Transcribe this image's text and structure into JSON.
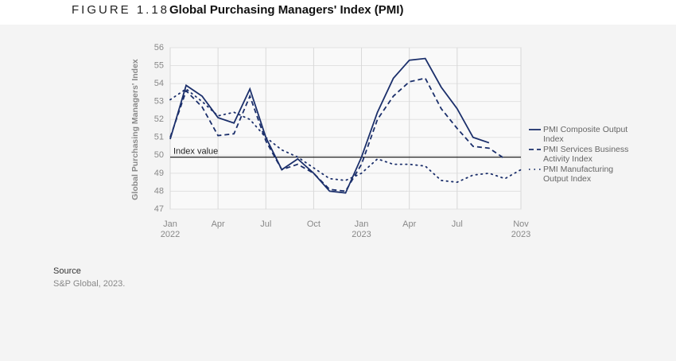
{
  "figure_label": "FIGURE 1.18",
  "source": {
    "heading": "Source",
    "text": "S&P Global, 2023."
  },
  "chart_data": {
    "type": "line",
    "title": "Global Purchasing Managers' Index (PMI)",
    "y_label": "Global Purchasing Managers' Index",
    "x": [
      "2022-01",
      "2022-02",
      "2022-03",
      "2022-04",
      "2022-05",
      "2022-06",
      "2022-07",
      "2022-08",
      "2022-09",
      "2022-10",
      "2022-11",
      "2022-12",
      "2023-01",
      "2023-02",
      "2023-03",
      "2023-04",
      "2023-05",
      "2023-06",
      "2023-07",
      "2023-08",
      "2023-09",
      "2023-10",
      "2023-11"
    ],
    "series": [
      {
        "name": "PMI Composite Output Index",
        "color": "#1b2f6b",
        "line_style": "solid",
        "values": [
          50.9,
          53.9,
          53.3,
          52.1,
          51.8,
          53.7,
          51.0,
          49.2,
          49.8,
          49.0,
          48.0,
          47.9,
          49.9,
          52.4,
          54.3,
          55.3,
          55.4,
          53.8,
          52.6,
          51.0,
          50.7,
          null,
          null
        ]
      },
      {
        "name": "PMI Services Business Activity Index",
        "color": "#1b2f6b",
        "line_style": "dashed",
        "values": [
          51.0,
          53.6,
          52.7,
          51.1,
          51.2,
          53.3,
          50.8,
          49.2,
          49.5,
          49.0,
          48.1,
          48.0,
          49.5,
          52.0,
          53.3,
          54.1,
          54.3,
          52.6,
          51.5,
          50.5,
          50.4,
          49.8,
          null
        ]
      },
      {
        "name": "PMI Manufacturing Output Index",
        "color": "#1b2f6b",
        "line_style": "dotted",
        "values": [
          53.1,
          53.7,
          53.0,
          52.2,
          52.4,
          52.0,
          51.0,
          50.3,
          49.9,
          49.3,
          48.7,
          48.6,
          49.0,
          49.8,
          49.5,
          49.5,
          49.4,
          48.6,
          48.5,
          48.9,
          49.0,
          48.7,
          49.2
        ]
      }
    ],
    "reference_line": {
      "value": 49.9,
      "label": "Index value"
    },
    "ylim": [
      47,
      56
    ],
    "yticks": [
      47,
      48,
      49,
      50,
      51,
      52,
      53,
      54,
      55,
      56
    ],
    "xlim": [
      "2022-01",
      "2023-11"
    ],
    "xticks": [
      {
        "value": "2022-01",
        "label": "Jan 2022"
      },
      {
        "value": "2022-04",
        "label": "Apr"
      },
      {
        "value": "2022-07",
        "label": "Jul"
      },
      {
        "value": "2022-10",
        "label": "Oct"
      },
      {
        "value": "2023-01",
        "label": "Jan 2023"
      },
      {
        "value": "2023-04",
        "label": "Apr"
      },
      {
        "value": "2023-07",
        "label": "Jul"
      },
      {
        "value": "2023-11",
        "label": "Nov 2023"
      }
    ],
    "grid": true,
    "legend_position": "right"
  }
}
